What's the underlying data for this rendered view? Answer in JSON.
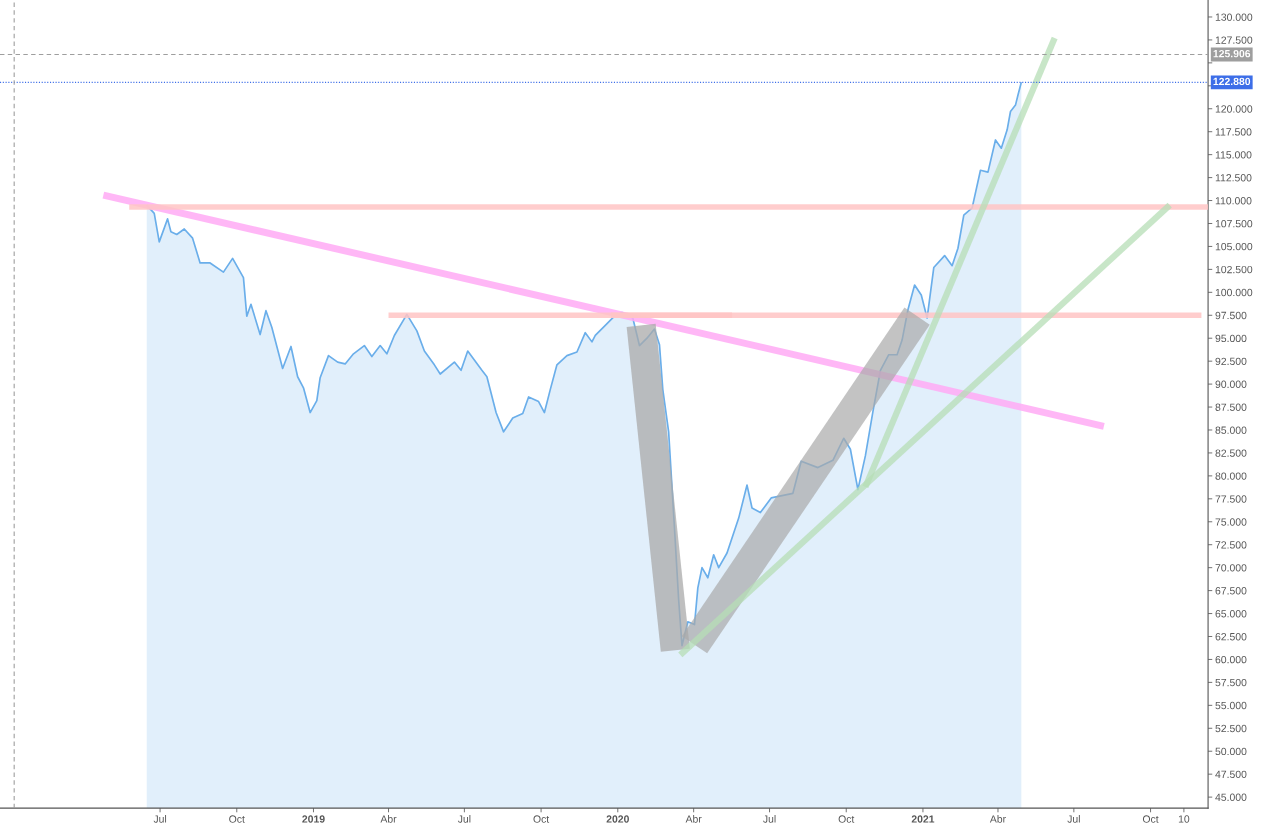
{
  "chart_data": {
    "type": "area",
    "xlim": [
      "2017-12-21",
      "2021-12-09"
    ],
    "ylim": [
      43.8,
      131.85
    ],
    "xticks": [
      {
        "value": "2018-07-01",
        "label": "Jul"
      },
      {
        "value": "2018-10-01",
        "label": "Oct"
      },
      {
        "value": "2019-01-01",
        "label": "2019"
      },
      {
        "value": "2019-04-01",
        "label": "Abr"
      },
      {
        "value": "2019-07-01",
        "label": "Jul"
      },
      {
        "value": "2019-10-01",
        "label": "Oct"
      },
      {
        "value": "2020-01-01",
        "label": "2020"
      },
      {
        "value": "2020-04-01",
        "label": "Abr"
      },
      {
        "value": "2020-07-01",
        "label": "Jul"
      },
      {
        "value": "2020-10-01",
        "label": "Oct"
      },
      {
        "value": "2021-01-01",
        "label": "2021"
      },
      {
        "value": "2021-04-01",
        "label": "Abr"
      },
      {
        "value": "2021-07-01",
        "label": "Jul"
      },
      {
        "value": "2021-10-01",
        "label": "Oct"
      },
      {
        "value": "2021-11-10",
        "label": "10"
      }
    ],
    "yticks": [
      {
        "value": 45,
        "label": "45.000"
      },
      {
        "value": 47.5,
        "label": "47.500"
      },
      {
        "value": 50,
        "label": "50.000"
      },
      {
        "value": 52.5,
        "label": "52.500"
      },
      {
        "value": 55,
        "label": "55.000"
      },
      {
        "value": 57.5,
        "label": "57.500"
      },
      {
        "value": 60,
        "label": "60.000"
      },
      {
        "value": 62.5,
        "label": "62.500"
      },
      {
        "value": 65,
        "label": "65.000"
      },
      {
        "value": 67.5,
        "label": "67.500"
      },
      {
        "value": 70,
        "label": "70.000"
      },
      {
        "value": 72.5,
        "label": "72.500"
      },
      {
        "value": 75,
        "label": "75.000"
      },
      {
        "value": 77.5,
        "label": "77.500"
      },
      {
        "value": 80,
        "label": "80.000"
      },
      {
        "value": 82.5,
        "label": "82.500"
      },
      {
        "value": 85,
        "label": "85.000"
      },
      {
        "value": 87.5,
        "label": "87.500"
      },
      {
        "value": 90,
        "label": "90.000"
      },
      {
        "value": 92.5,
        "label": "92.500"
      },
      {
        "value": 95,
        "label": "95.000"
      },
      {
        "value": 97.5,
        "label": "97.500"
      },
      {
        "value": 100,
        "label": "100.000"
      },
      {
        "value": 102.5,
        "label": "102.500"
      },
      {
        "value": 105,
        "label": "105.000"
      },
      {
        "value": 107.5,
        "label": "107.500"
      },
      {
        "value": 110,
        "label": "110.000"
      },
      {
        "value": 112.5,
        "label": "112.500"
      },
      {
        "value": 115,
        "label": "115.000"
      },
      {
        "value": 117.5,
        "label": "117.500"
      },
      {
        "value": 120,
        "label": "120.000"
      },
      {
        "value": 122.5,
        "label": null
      },
      {
        "value": 125,
        "label": null
      },
      {
        "value": 127.5,
        "label": "127.500"
      },
      {
        "value": 130,
        "label": "130.000"
      }
    ],
    "grid": false,
    "legend": false,
    "ref_lines": [
      {
        "axis": "y",
        "value": 125.906,
        "label": "125.906",
        "color": "#9e9e9e",
        "line_style": "dashed"
      },
      {
        "axis": "y",
        "value": 122.88,
        "label": "122.880",
        "color": "#3d6ee8",
        "line_style": "dotted"
      },
      {
        "axis": "x",
        "value": "2018-01-07",
        "color": "#9e9e9e",
        "line_style": "dashed"
      }
    ],
    "series": [
      {
        "color": "#6aaeea",
        "x": [
          "2018-06-15",
          "2018-06-24",
          "2018-06-30",
          "2018-07-10",
          "2018-07-14",
          "2018-07-21",
          "2018-07-30",
          "2018-08-09",
          "2018-08-18",
          "2018-08-30",
          "2018-09-15",
          "2018-09-26",
          "2018-10-09",
          "2018-10-13",
          "2018-10-18",
          "2018-10-29",
          "2018-11-05",
          "2018-11-12",
          "2018-11-25",
          "2018-12-05",
          "2018-12-13",
          "2018-12-20",
          "2018-12-28",
          "2019-01-05",
          "2019-01-09",
          "2019-01-19",
          "2019-01-30",
          "2019-02-08",
          "2019-02-18",
          "2019-03-03",
          "2019-03-12",
          "2019-03-22",
          "2019-03-30",
          "2019-04-08",
          "2019-04-23",
          "2019-05-05",
          "2019-05-14",
          "2019-05-26",
          "2019-06-02",
          "2019-06-19",
          "2019-06-27",
          "2019-07-05",
          "2019-07-22",
          "2019-07-28",
          "2019-08-08",
          "2019-08-17",
          "2019-08-28",
          "2019-09-09",
          "2019-09-16",
          "2019-09-28",
          "2019-10-05",
          "2019-10-12",
          "2019-10-20",
          "2019-11-01",
          "2019-11-13",
          "2019-11-23",
          "2019-12-01",
          "2019-12-05",
          "2019-12-17",
          "2019-12-28",
          "2020-01-06",
          "2020-01-19",
          "2020-01-27",
          "2020-02-05",
          "2020-02-14",
          "2020-02-20",
          "2020-02-24",
          "2020-03-02",
          "2020-03-09",
          "2020-03-14",
          "2020-03-18",
          "2020-03-25",
          "2020-04-02",
          "2020-04-06",
          "2020-04-11",
          "2020-04-18",
          "2020-04-25",
          "2020-05-01",
          "2020-05-11",
          "2020-05-25",
          "2020-06-04",
          "2020-06-10",
          "2020-06-20",
          "2020-07-03",
          "2020-07-29",
          "2020-08-08",
          "2020-08-28",
          "2020-09-15",
          "2020-09-28",
          "2020-10-06",
          "2020-10-15",
          "2020-10-24",
          "2020-11-02",
          "2020-11-11",
          "2020-11-21",
          "2020-12-01",
          "2020-12-07",
          "2020-12-14",
          "2020-12-22",
          "2020-12-30",
          "2021-01-06",
          "2021-01-14",
          "2021-01-27",
          "2021-02-05",
          "2021-02-12",
          "2021-02-19",
          "2021-03-01",
          "2021-03-11",
          "2021-03-20",
          "2021-03-29",
          "2021-04-05",
          "2021-04-12",
          "2021-04-16",
          "2021-04-22",
          "2021-04-25",
          "2021-04-29"
        ],
        "values": [
          109.5,
          108.6,
          105.5,
          108.0,
          106.6,
          106.3,
          106.9,
          105.9,
          103.2,
          103.2,
          102.2,
          103.7,
          101.6,
          97.4,
          98.7,
          95.4,
          98.0,
          96.2,
          91.7,
          94.1,
          90.8,
          89.6,
          86.9,
          88.2,
          90.7,
          93.1,
          92.4,
          92.2,
          93.3,
          94.2,
          93.0,
          94.2,
          93.3,
          95.3,
          97.6,
          95.8,
          93.6,
          92.1,
          91.1,
          92.4,
          91.5,
          93.6,
          91.5,
          90.8,
          86.9,
          84.8,
          86.3,
          86.8,
          88.6,
          88.1,
          86.9,
          89.4,
          92.1,
          93.1,
          93.5,
          95.6,
          94.6,
          95.3,
          96.4,
          97.4,
          97.8,
          97.2,
          94.2,
          95.0,
          96.0,
          94.3,
          89.4,
          84.8,
          74.3,
          66.5,
          61.5,
          64.1,
          63.8,
          67.8,
          70.0,
          68.9,
          71.4,
          70.0,
          71.6,
          75.4,
          79.0,
          76.5,
          76.0,
          77.6,
          78.1,
          81.6,
          80.9,
          81.7,
          84.1,
          82.9,
          78.5,
          82.2,
          87.0,
          91.5,
          93.2,
          93.2,
          94.8,
          98.1,
          100.8,
          99.7,
          97.2,
          102.7,
          104.0,
          102.9,
          104.8,
          108.4,
          109.2,
          113.3,
          113.1,
          116.6,
          115.7,
          117.7,
          119.7,
          120.4,
          121.5,
          122.88
        ]
      },
      {
        "type": "line",
        "color": "#ffaaf5",
        "x": [
          "2018-04-24",
          "2021-08-06"
        ],
        "values": [
          110.6,
          85.4
        ]
      },
      {
        "type": "line",
        "color": "#ffc4c4",
        "x": [
          "2018-05-25",
          "2021-12-09"
        ],
        "values": [
          109.3,
          109.3
        ]
      },
      {
        "type": "line",
        "color": "#ffc4c4",
        "x": [
          "2019-04-01",
          "2021-12-01"
        ],
        "values": [
          97.5,
          97.5
        ]
      },
      {
        "type": "line",
        "color": "#ffc4c4",
        "x": [
          "2019-12-24",
          "2020-05-17"
        ],
        "values": [
          97.5,
          97.5
        ]
      },
      {
        "type": "line",
        "color": "#a9a9a9",
        "x": [
          "2020-01-29",
          "2020-03-10"
        ],
        "values": [
          96.4,
          61.0
        ]
      },
      {
        "type": "line",
        "color": "#a9a9a9",
        "x": [
          "2020-04-02",
          "2020-12-25"
        ],
        "values": [
          61.6,
          97.4
        ]
      },
      {
        "type": "line",
        "color": "#b5ddb5",
        "x": [
          "2020-10-24",
          "2021-06-08"
        ],
        "values": [
          78.8,
          127.7
        ]
      },
      {
        "type": "line",
        "color": "#b5ddb5",
        "x": [
          "2020-03-16",
          "2021-10-24"
        ],
        "values": [
          60.5,
          109.5
        ]
      }
    ]
  }
}
